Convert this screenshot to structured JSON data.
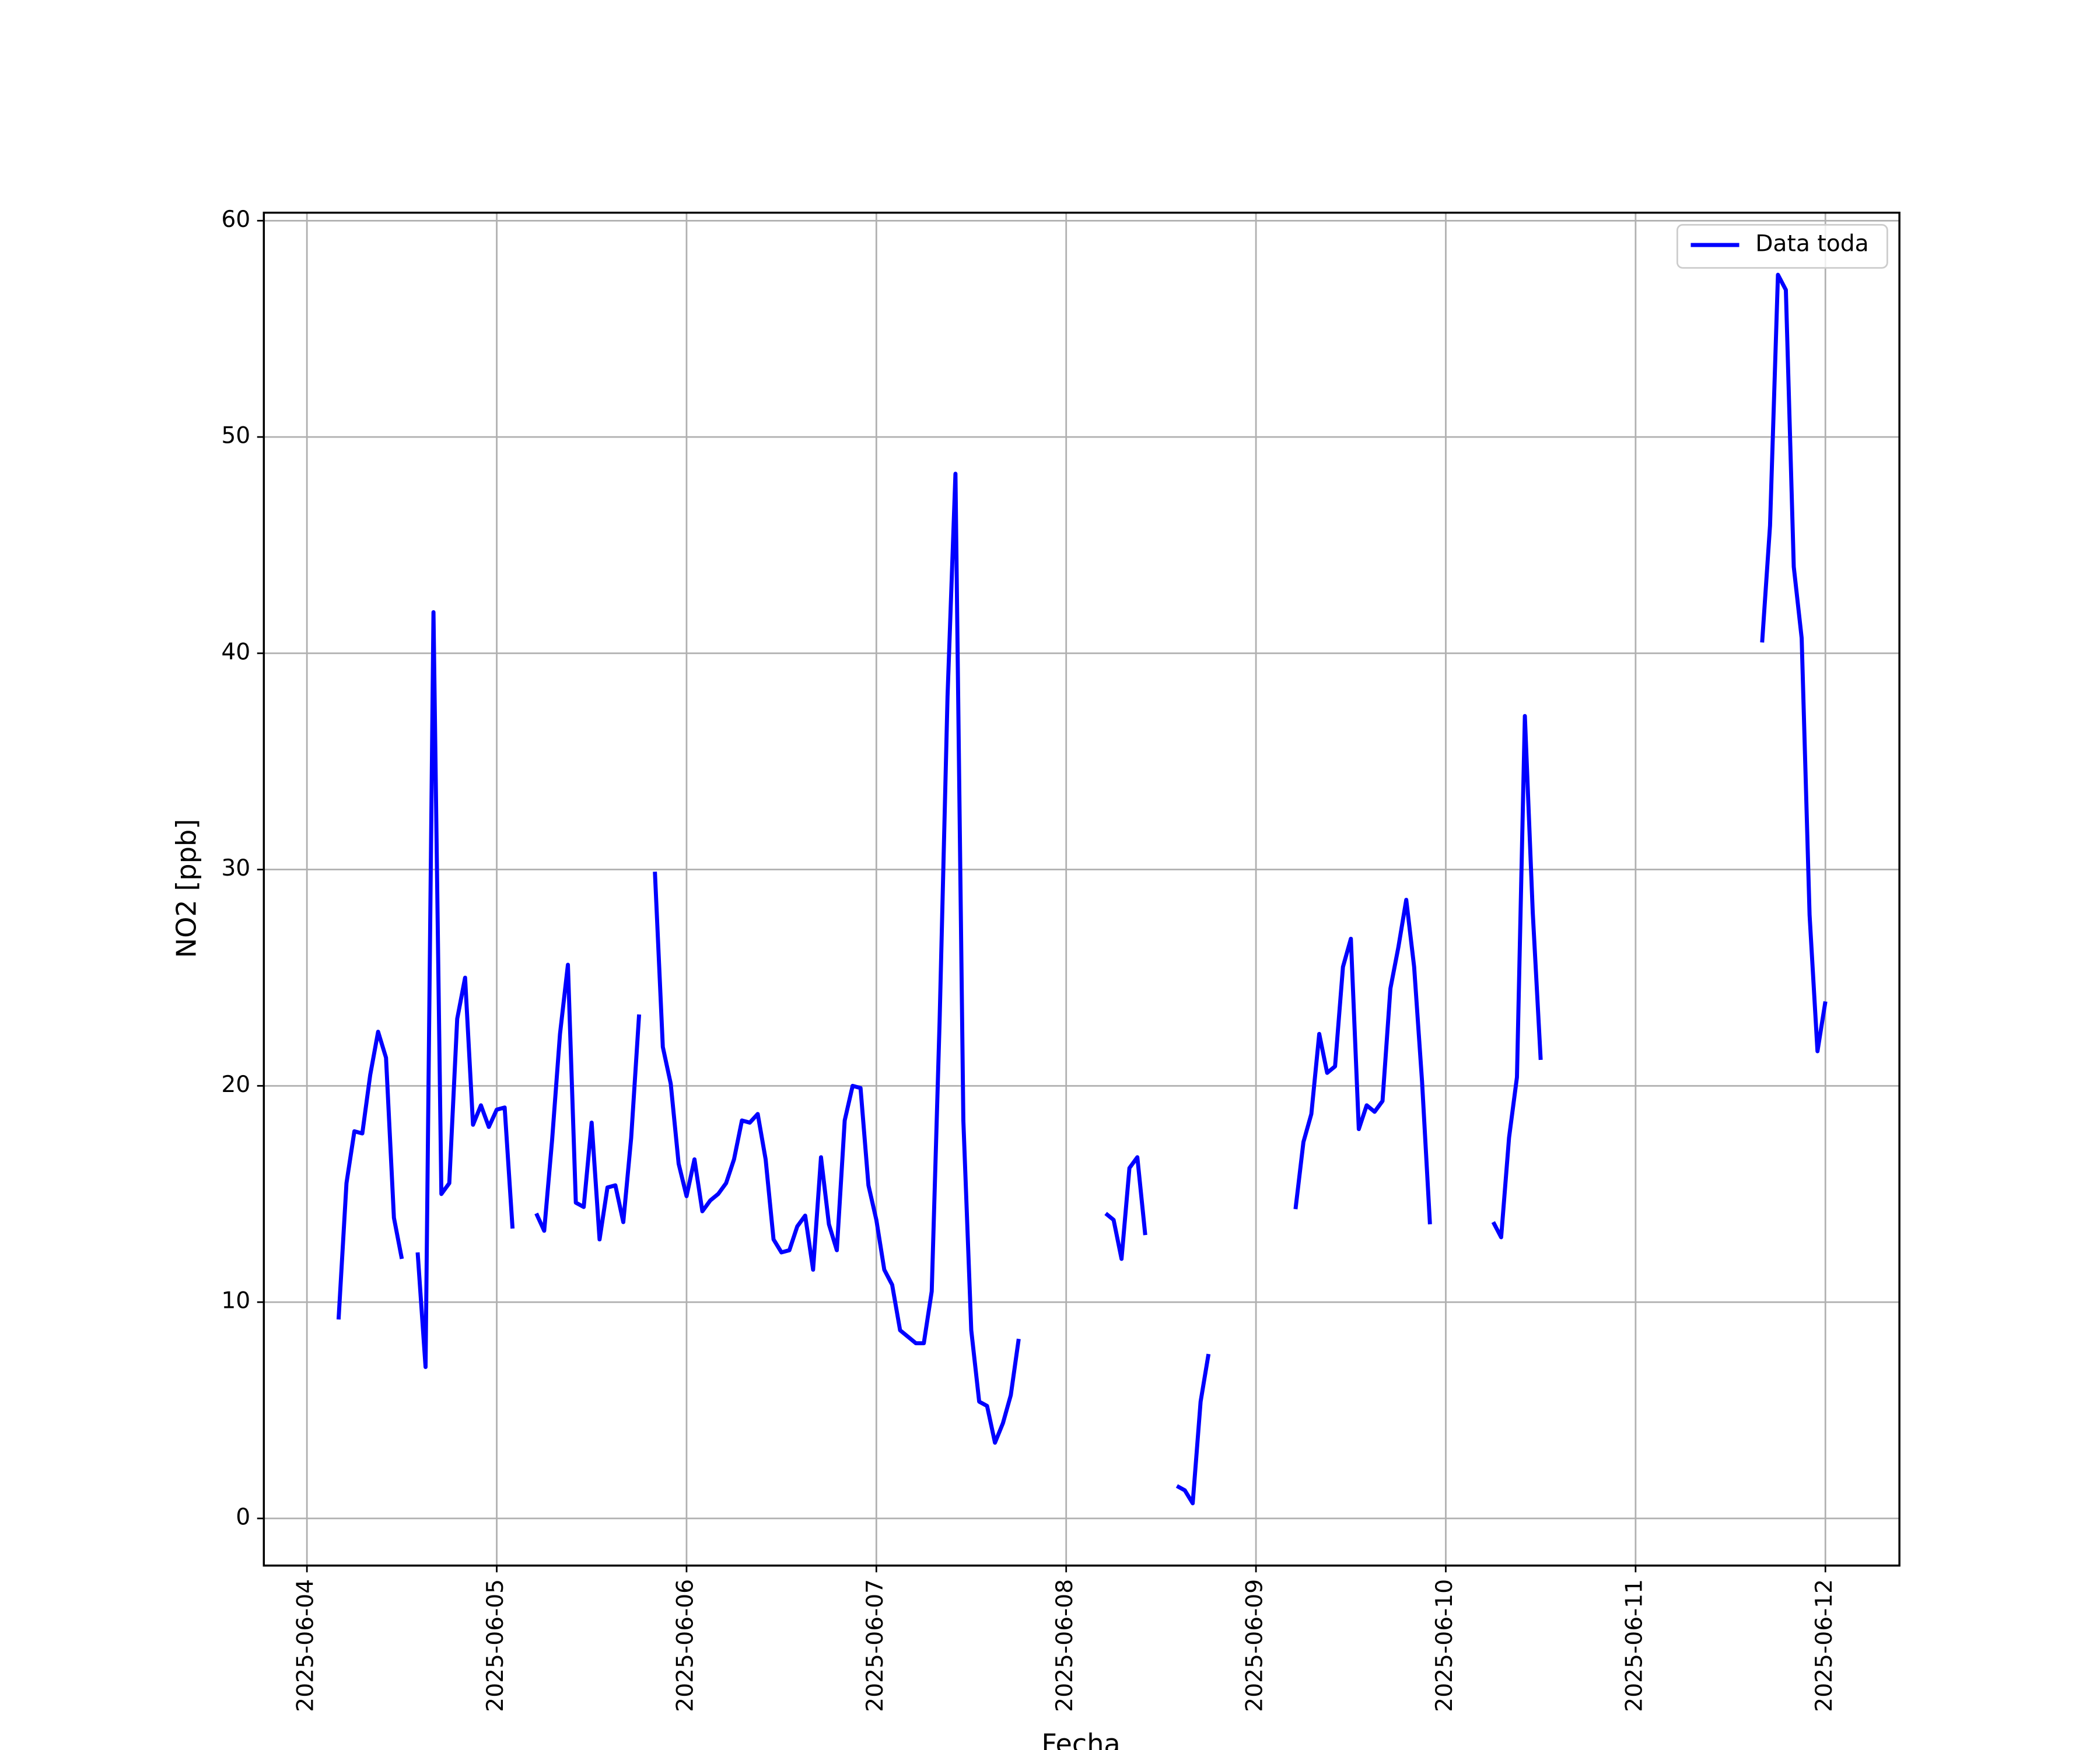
{
  "chart_data": {
    "type": "line",
    "xlabel": "Fecha",
    "ylabel": "NO2 [ppb]",
    "x": [
      20243.1667,
      20243.2083,
      20243.25,
      20243.2917,
      20243.3333,
      20243.375,
      20243.4167,
      20243.4583,
      20243.5,
      20243.5417,
      20243.5833,
      20243.625,
      20243.6667,
      20243.7083,
      20243.75,
      20243.7917,
      20243.8333,
      20243.875,
      20243.9167,
      20243.9583,
      20244,
      20244.0417,
      20244.0833,
      20244.125,
      20244.2083,
      20244.25,
      20244.2917,
      20244.3333,
      20244.375,
      20244.4167,
      20244.4583,
      20244.5,
      20244.5417,
      20244.5833,
      20244.625,
      20244.6667,
      20244.7083,
      20244.75,
      20244.7917,
      20244.8333,
      20244.875,
      20244.9167,
      20244.9583,
      20245,
      20245.0417,
      20245.0833,
      20245.125,
      20245.1667,
      20245.2083,
      20245.25,
      20245.2917,
      20245.3333,
      20245.375,
      20245.4167,
      20245.4583,
      20245.5,
      20245.5417,
      20245.5833,
      20245.625,
      20245.6667,
      20245.7083,
      20245.75,
      20245.7917,
      20245.8333,
      20245.875,
      20245.9167,
      20245.9583,
      20246,
      20246.0417,
      20246.0833,
      20246.125,
      20246.1667,
      20246.2083,
      20246.25,
      20246.2917,
      20246.3333,
      20246.375,
      20246.4167,
      20246.4583,
      20246.5,
      20246.5417,
      20246.5833,
      20246.625,
      20246.6667,
      20246.7083,
      20246.75,
      20246.7917,
      20247.2083,
      20247.25,
      20247.2917,
      20247.3333,
      20247.375,
      20247.4167,
      20247.4583,
      20247.5833,
      20247.625,
      20247.6667,
      20247.7083,
      20247.75,
      20247.7917,
      20248.2083,
      20248.25,
      20248.2917,
      20248.3333,
      20248.375,
      20248.4167,
      20248.4583,
      20248.5,
      20248.5417,
      20248.5833,
      20248.625,
      20248.6667,
      20248.7083,
      20248.75,
      20248.7917,
      20248.8333,
      20248.875,
      20248.9167,
      20248.9583,
      20249.25,
      20249.2917,
      20249.3333,
      20249.375,
      20249.4167,
      20249.4583,
      20249.5,
      20249.5417,
      20250.6667,
      20250.7083,
      20250.75,
      20250.7917,
      20250.8333,
      20250.875,
      20250.9167,
      20250.9583,
      20251
    ],
    "series": [
      {
        "name": "Data toda",
        "color": "#0000ff",
        "values": [
          9.2,
          15.5,
          17.9,
          17.8,
          20.5,
          22.5,
          21.3,
          13.9,
          12.0,
          null,
          12.3,
          7.0,
          41.9,
          15.0,
          15.5,
          23.1,
          25.0,
          18.2,
          19.1,
          18.1,
          18.9,
          19.0,
          13.4,
          null,
          14.1,
          13.3,
          17.5,
          22.4,
          25.6,
          14.6,
          14.4,
          18.3,
          12.9,
          15.3,
          15.4,
          13.7,
          17.6,
          23.3,
          null,
          29.9,
          21.8,
          20.1,
          16.4,
          14.9,
          16.6,
          14.2,
          14.7,
          15.0,
          15.5,
          16.6,
          18.4,
          18.3,
          18.7,
          16.6,
          12.9,
          12.3,
          12.4,
          13.5,
          14.0,
          11.5,
          16.7,
          13.6,
          12.4,
          18.4,
          20.0,
          19.9,
          15.4,
          13.8,
          11.5,
          10.8,
          8.7,
          8.4,
          8.1,
          8.1,
          10.5,
          23.0,
          38.0,
          48.3,
          18.4,
          8.7,
          5.4,
          5.2,
          3.5,
          4.4,
          5.7,
          8.3,
          null,
          14.1,
          13.8,
          12.0,
          16.2,
          16.7,
          13.1,
          null,
          1.5,
          1.3,
          0.7,
          5.4,
          7.6,
          null,
          14.3,
          17.4,
          18.7,
          22.4,
          20.6,
          20.9,
          25.5,
          26.8,
          18.0,
          19.1,
          18.8,
          19.3,
          24.5,
          26.4,
          28.6,
          25.5,
          20.2,
          13.6,
          null,
          13.7,
          13.0,
          17.6,
          20.4,
          37.1,
          28.0,
          21.2,
          null,
          40.5,
          45.9,
          57.5,
          56.8,
          44.0,
          40.7,
          27.9,
          21.6,
          23.9
        ]
      }
    ],
    "xlim": [
      20242.773,
      20251.39
    ],
    "xticks": [
      {
        "value": 20243,
        "label": "2025-06-04"
      },
      {
        "value": 20244,
        "label": "2025-06-05"
      },
      {
        "value": 20245,
        "label": "2025-06-06"
      },
      {
        "value": 20246,
        "label": "2025-06-07"
      },
      {
        "value": 20247,
        "label": "2025-06-08"
      },
      {
        "value": 20248,
        "label": "2025-06-09"
      },
      {
        "value": 20249,
        "label": "2025-06-10"
      },
      {
        "value": 20250,
        "label": "2025-06-11"
      },
      {
        "value": 20251,
        "label": "2025-06-12"
      }
    ],
    "ylim": [
      -2.18,
      60.37
    ],
    "yticks": [
      0,
      10,
      20,
      30,
      40,
      50,
      60
    ],
    "grid": true,
    "legend": "upper right"
  }
}
